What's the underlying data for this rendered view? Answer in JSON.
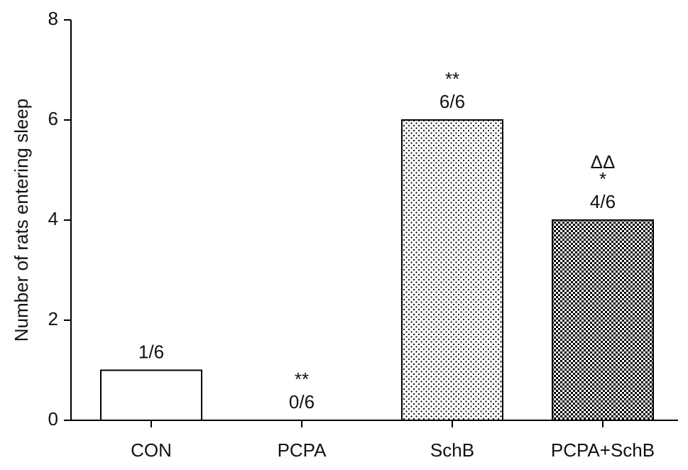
{
  "chart_data": {
    "type": "bar",
    "y_label": "Number of rats entering sleep",
    "categories": [
      "CON",
      "PCPA",
      "SchB",
      "PCPA+SchB"
    ],
    "values": [
      1,
      0,
      6,
      4
    ],
    "value_labels": [
      "1/6",
      "0/6",
      "6/6",
      "4/6"
    ],
    "significance": [
      null,
      "**",
      "**",
      "*"
    ],
    "significance_vs_pcpa": [
      null,
      null,
      null,
      "ΔΔ"
    ],
    "patterns": [
      "none",
      "none",
      "dots",
      "checker"
    ],
    "color": "#000000",
    "ylim": [
      0,
      8
    ],
    "yticks": [
      0,
      2,
      4,
      6,
      8
    ],
    "grid": false
  }
}
